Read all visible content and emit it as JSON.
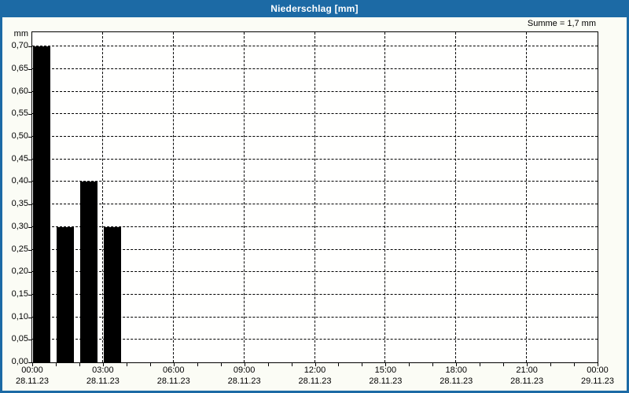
{
  "window": {
    "title": "Niederschlag [mm]"
  },
  "colors": {
    "frame_blue": "#1c6aa5",
    "page_background": "#fbfcf5",
    "plot_background": "#fffffe",
    "bar_color": "#000000",
    "grid_color": "#000000",
    "title_text": "#ffffff",
    "axis_text": "#000000"
  },
  "chart_data": {
    "type": "bar",
    "title": "Niederschlag [mm]",
    "ylabel": "mm",
    "summary": "Summe = 1,7 mm",
    "grid": "dashed",
    "ylim": [
      0,
      0.732
    ],
    "x_range_hours": [
      0,
      24
    ],
    "bars": [
      {
        "hour": 0,
        "value": 0.7,
        "label": "0,70"
      },
      {
        "hour": 1,
        "value": 0.3,
        "label": "0,30"
      },
      {
        "hour": 2,
        "value": 0.4,
        "label": "0,40"
      },
      {
        "hour": 3,
        "value": 0.3,
        "label": "0,30"
      }
    ],
    "bar_color": "#000000",
    "y_ticks": [
      {
        "value": 0.0,
        "label": "0,00"
      },
      {
        "value": 0.05,
        "label": "0,05"
      },
      {
        "value": 0.1,
        "label": "0,10"
      },
      {
        "value": 0.15,
        "label": "0,15"
      },
      {
        "value": 0.2,
        "label": "0,20"
      },
      {
        "value": 0.25,
        "label": "0,25"
      },
      {
        "value": 0.3,
        "label": "0,30"
      },
      {
        "value": 0.35,
        "label": "0,35"
      },
      {
        "value": 0.4,
        "label": "0,40"
      },
      {
        "value": 0.45,
        "label": "0,45"
      },
      {
        "value": 0.5,
        "label": "0,50"
      },
      {
        "value": 0.55,
        "label": "0,55"
      },
      {
        "value": 0.6,
        "label": "0,60"
      },
      {
        "value": 0.65,
        "label": "0,65"
      },
      {
        "value": 0.7,
        "label": "0,70"
      }
    ],
    "x_major_ticks": [
      {
        "hour": 0,
        "time": "00:00",
        "date": "28.11.23"
      },
      {
        "hour": 3,
        "time": "03:00",
        "date": "28.11.23"
      },
      {
        "hour": 6,
        "time": "06:00",
        "date": "28.11.23"
      },
      {
        "hour": 9,
        "time": "09:00",
        "date": "28.11.23"
      },
      {
        "hour": 12,
        "time": "12:00",
        "date": "28.11.23"
      },
      {
        "hour": 15,
        "time": "15:00",
        "date": "28.11.23"
      },
      {
        "hour": 18,
        "time": "18:00",
        "date": "28.11.23"
      },
      {
        "hour": 21,
        "time": "21:00",
        "date": "28.11.23"
      },
      {
        "hour": 24,
        "time": "00:00",
        "date": "29.11.23"
      }
    ],
    "x_minor_tick_every_hours": 1,
    "vertical_grid_hours": [
      3,
      6,
      9,
      12,
      15,
      18,
      21
    ]
  }
}
